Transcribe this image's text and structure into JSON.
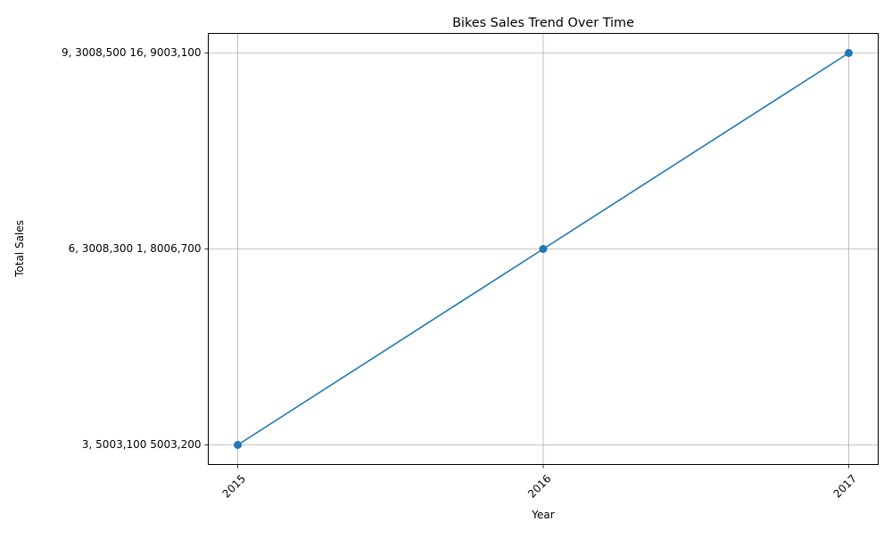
{
  "chart_data": {
    "type": "line",
    "title": "Bikes Sales Trend Over Time",
    "xlabel": "Year",
    "ylabel": "Total Sales",
    "categories": [
      "2015",
      "2016",
      "2017"
    ],
    "y_tick_labels": [
      "3, 5003,100  5003,200",
      "6, 3008,300  1, 8006,700",
      "9, 3008,500  16, 9003,100"
    ],
    "series": [
      {
        "values": [
          "3, 5003,100  5003,200",
          "6, 3008,300  1, 8006,700",
          "9, 3008,500  16, 9003,100"
        ],
        "color": "#1f77b4",
        "marker": "circle"
      }
    ],
    "grid": true,
    "x_tick_rotation_deg": 45,
    "legend": "none"
  }
}
